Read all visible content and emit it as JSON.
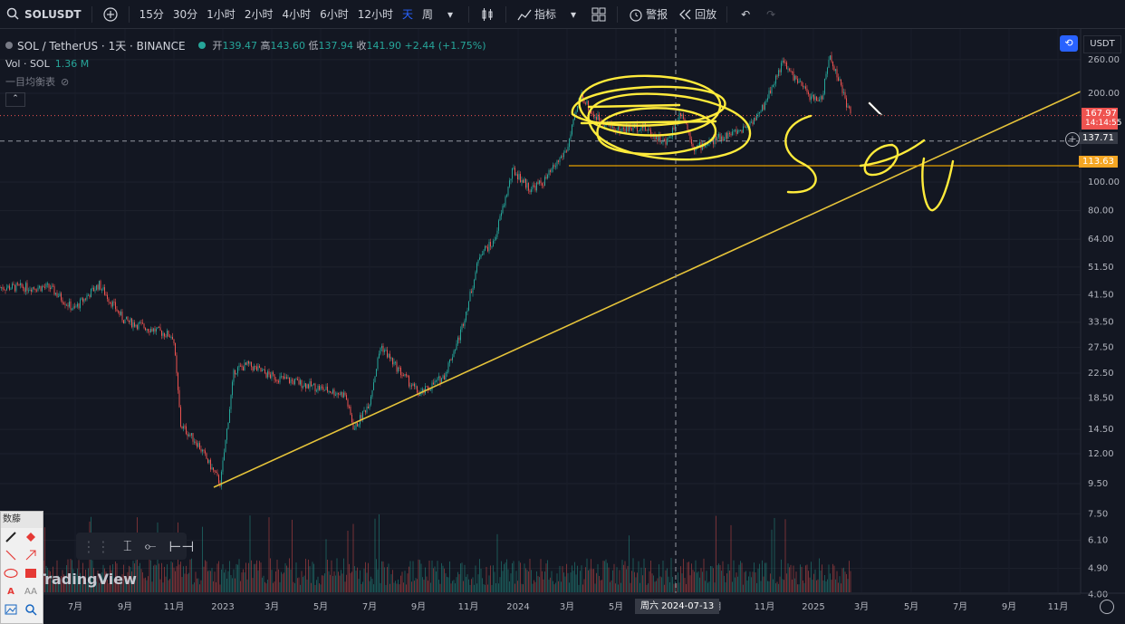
{
  "toolbar": {
    "symbol": "SOLUSDT",
    "intervals": [
      "15分",
      "30分",
      "1小时",
      "2小时",
      "4小时",
      "6小时",
      "12小时",
      "天",
      "周"
    ],
    "active_interval": "天",
    "indicators_label": "指标",
    "alert_label": "警报",
    "replay_label": "回放"
  },
  "legend": {
    "title": "SOL / TetherUS · 1天 · BINANCE",
    "open_label": "开",
    "open": "139.47",
    "high_label": "高",
    "high": "143.60",
    "low_label": "低",
    "low": "137.94",
    "close_label": "收",
    "close": "141.90",
    "change": "+2.44 (+1.75%)",
    "vol_label": "Vol · SOL",
    "vol_value": "1.36 M",
    "ichimoku_label": "一目均衡表"
  },
  "currency": "USDT",
  "price_tags": {
    "last": "167.97",
    "countdown": "14:14:55",
    "crosshair": "137.71",
    "hline": "113.63"
  },
  "watermark": "TradingView",
  "crosshair_date": "周六 2024-07-13",
  "draw_panel": {
    "title": "数藤",
    "text_glyph": "A",
    "font_size_glyph": "AA"
  },
  "colors": {
    "up": "#26a69a",
    "down": "#ef5350",
    "trendline": "#e5c33a",
    "hline": "#e5a000",
    "annotation": "#ffeb3b",
    "last_price_bg": "#ef5350",
    "hline_bg": "#f5a623"
  },
  "chart_data": {
    "type": "line",
    "title": "SOL / TetherUS · 1天 · BINANCE",
    "y_scale": "log",
    "y_ticks": [
      4.0,
      4.9,
      6.1,
      7.5,
      9.5,
      12.0,
      14.5,
      18.5,
      22.5,
      27.5,
      33.5,
      41.5,
      51.5,
      64.0,
      80.0,
      100.0,
      200.0,
      260.0
    ],
    "x_ticks": [
      "7月",
      "9月",
      "11月",
      "2023",
      "3月",
      "5月",
      "7月",
      "9月",
      "11月",
      "2024",
      "3月",
      "5月",
      "7月",
      "9月",
      "11月",
      "2025",
      "3月",
      "5月",
      "7月",
      "9月",
      "11月"
    ],
    "series": [
      {
        "x": [
          "2022-06-01",
          "2022-07-01",
          "2022-08-01",
          "2022-09-01",
          "2022-10-01",
          "2022-11-01",
          "2022-11-10",
          "2022-12-01",
          "2022-12-29",
          "2023-01-15",
          "2023-02-01",
          "2023-03-01",
          "2023-04-01",
          "2023-05-01",
          "2023-06-01",
          "2023-06-12",
          "2023-07-01",
          "2023-07-15",
          "2023-08-01",
          "2023-09-01",
          "2023-10-01",
          "2023-10-20",
          "2023-11-01",
          "2023-11-15",
          "2023-12-01",
          "2023-12-25",
          "2024-01-15",
          "2024-02-01",
          "2024-03-01",
          "2024-03-18",
          "2024-04-01",
          "2024-05-01",
          "2024-06-01",
          "2024-07-01",
          "2024-07-20",
          "2024-08-05",
          "2024-09-01",
          "2024-10-01",
          "2024-10-25",
          "2024-11-10",
          "2024-11-22",
          "2024-12-10",
          "2024-12-30",
          "2025-01-10",
          "2025-01-19",
          "2025-02-01",
          "2025-02-14"
        ],
        "values": [
          44,
          37,
          45,
          34,
          32,
          30,
          15,
          13,
          9.5,
          23,
          24,
          22,
          21,
          20,
          19,
          14.5,
          18,
          28,
          24,
          19,
          22,
          30,
          40,
          58,
          62,
          110,
          95,
          100,
          130,
          200,
          170,
          150,
          155,
          135,
          175,
          130,
          140,
          150,
          170,
          215,
          255,
          220,
          190,
          195,
          270,
          215,
          168
        ]
      }
    ],
    "horizontal_lines": [
      113.63
    ],
    "crosshair_price": 137.71,
    "last_price": 167.97
  }
}
